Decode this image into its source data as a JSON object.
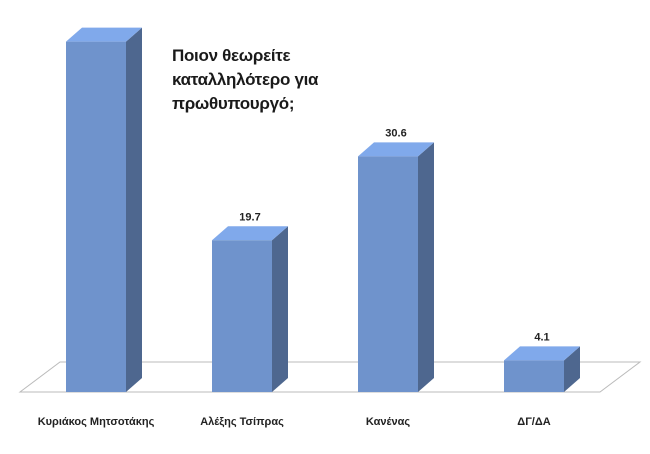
{
  "chart_data": {
    "type": "bar3d",
    "title": "Ποιον θεωρείτε καταλληλότερο για πρωθυπουργό;",
    "categories": [
      "Κυριάκος Μητσοτάκης",
      "Αλέξης Τσίπρας",
      "Κανένας",
      "ΔΓ/ΔΑ"
    ],
    "values": [
      45.5,
      19.7,
      30.6,
      4.1
    ],
    "value_labels": [
      null,
      "19.7",
      "30.6",
      "4.1"
    ],
    "color": "#6f93cc"
  }
}
